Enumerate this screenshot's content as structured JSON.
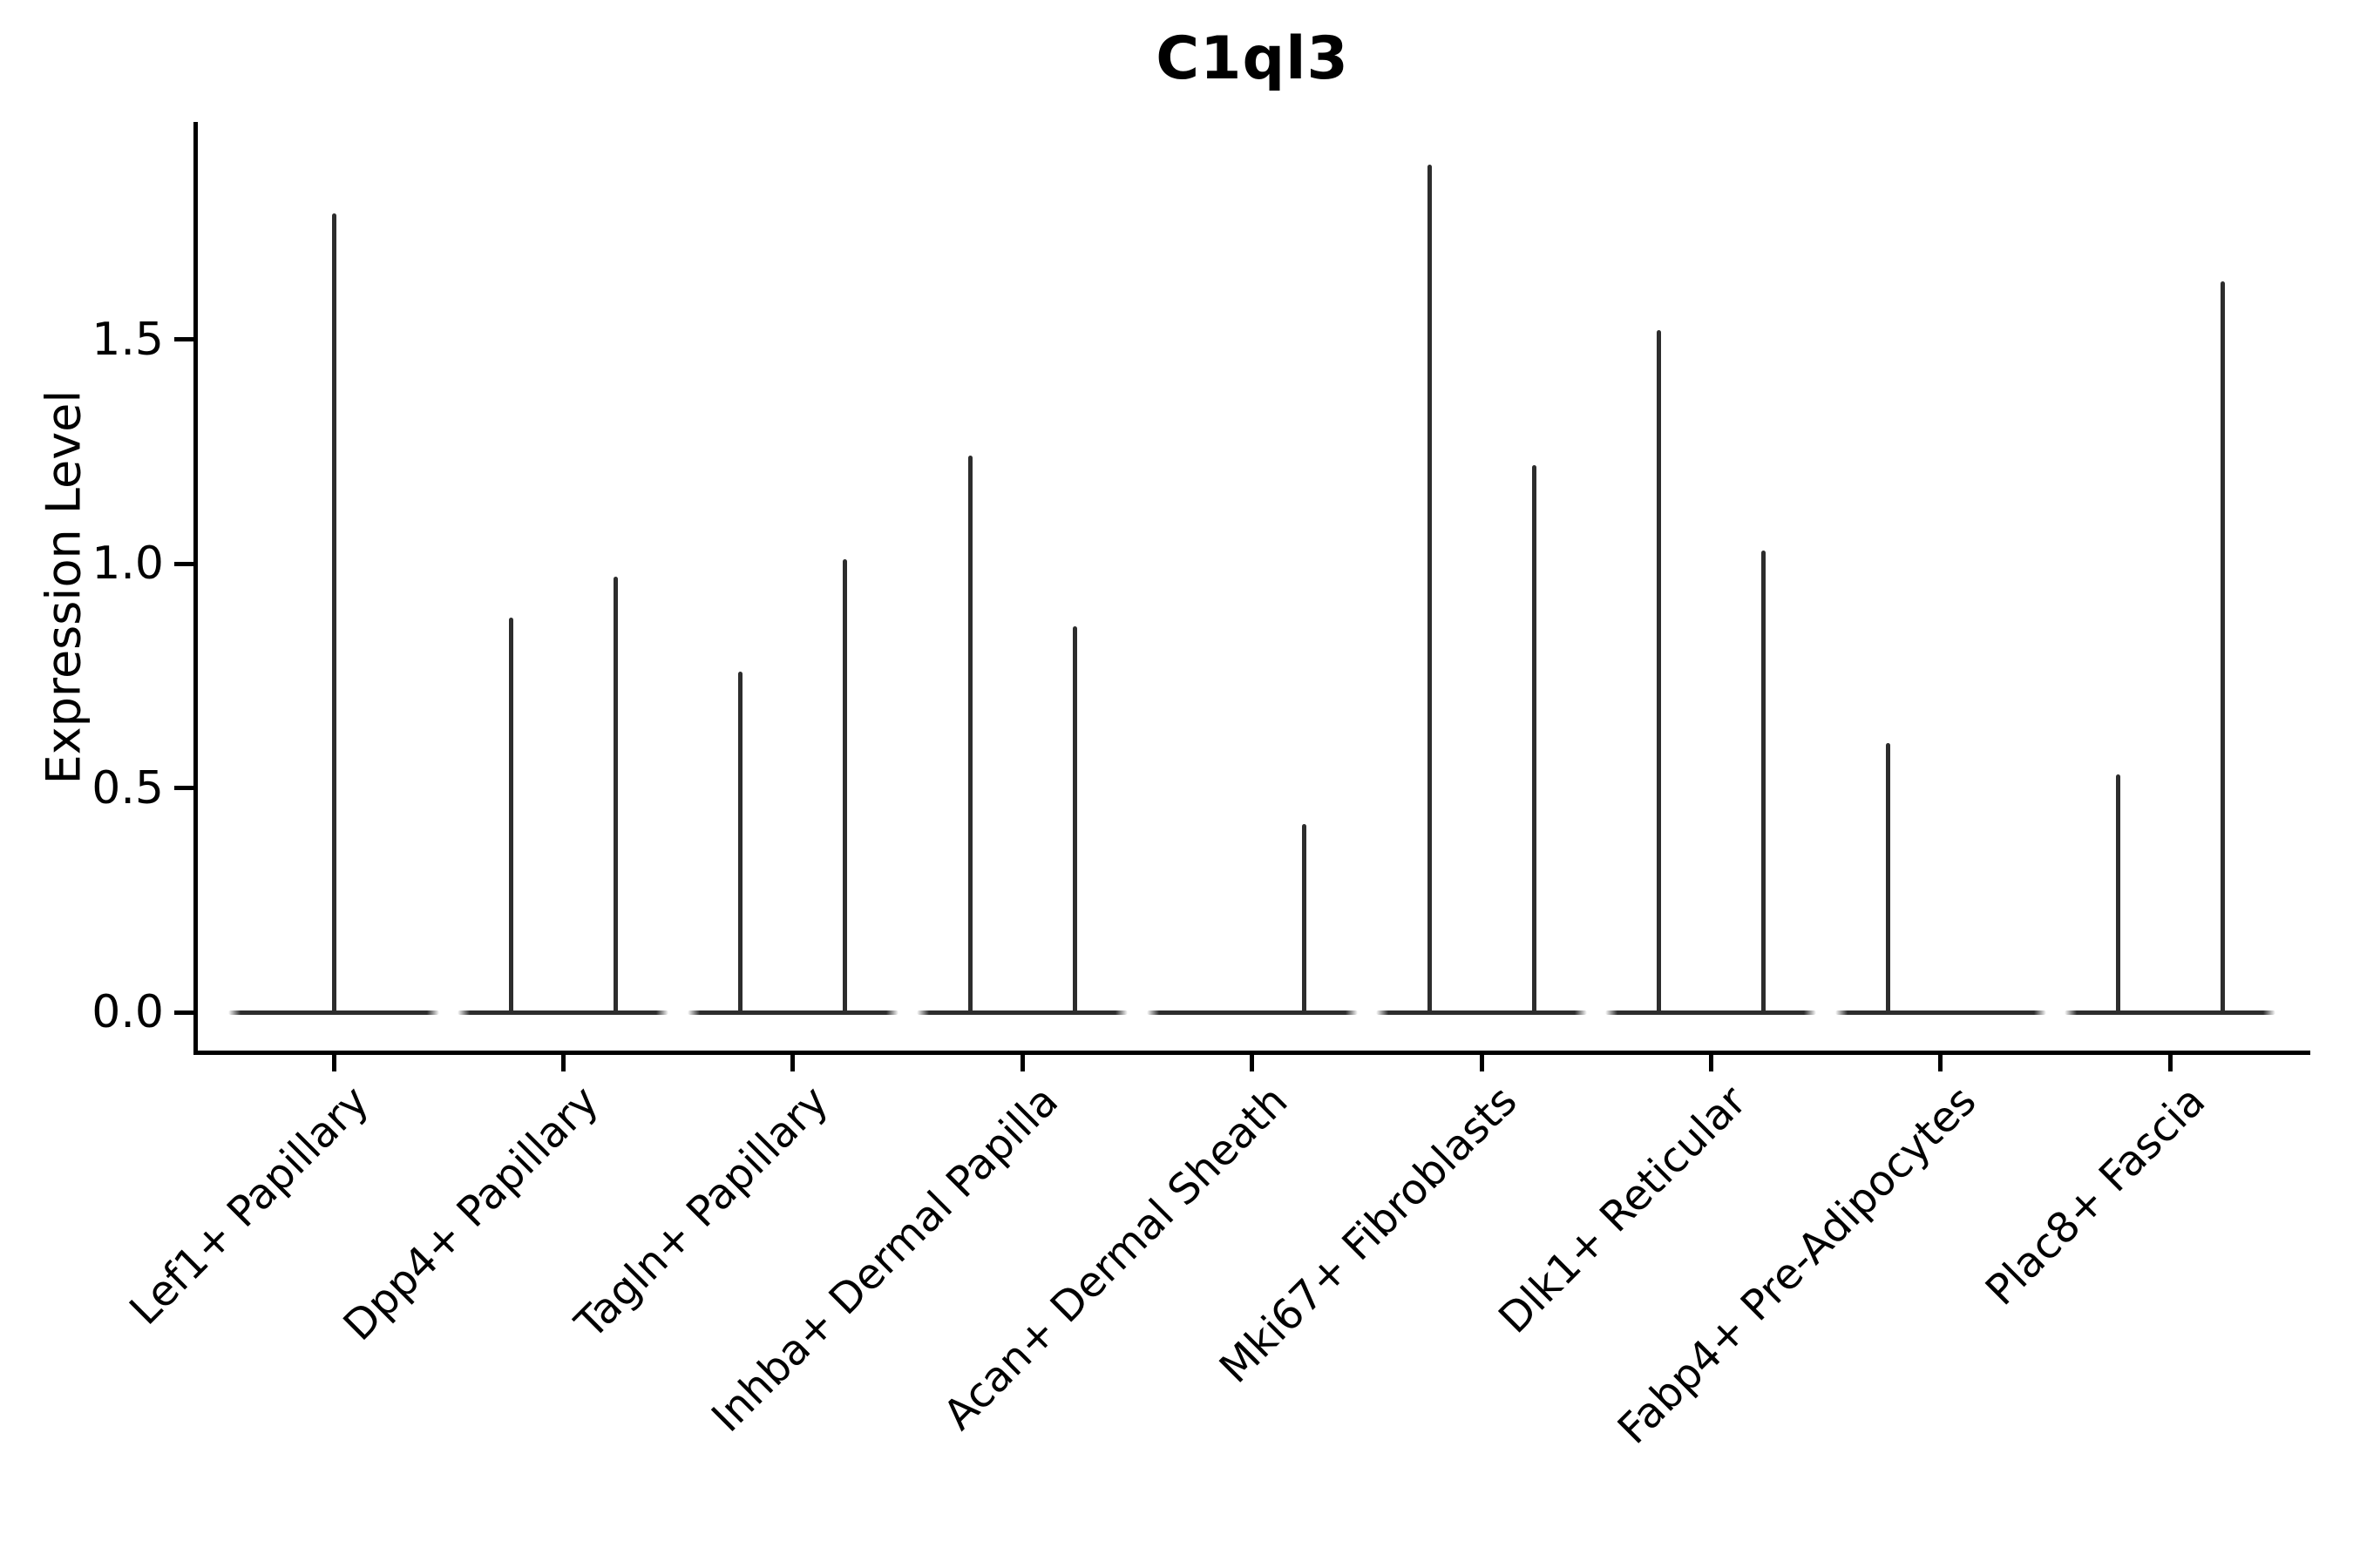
{
  "chart_data": {
    "type": "violin",
    "title": "C1ql3",
    "xlabel": "",
    "ylabel": "Expression Level",
    "yticks": [
      {
        "label": "1.5",
        "value": 1.5
      },
      {
        "label": "1.0",
        "value": 1.0
      },
      {
        "label": "0.5",
        "value": 0.5
      },
      {
        "label": "0.0",
        "value": 0.0
      }
    ],
    "ylim": [
      -0.09,
      2.0
    ],
    "grid": false,
    "legend": null,
    "x_tick_rotation": 45,
    "line_color": "#2d2d2d",
    "axis_color": "#000000",
    "background_color": "#ffffff",
    "categories": [
      "Lef1+ Papillary",
      "Dpp4+ Papillary",
      "Tagln+ Papillary",
      "Inhba+ Dermal Papilla",
      "Acan+ Dermal Sheath",
      "Mki67+ Fibroblasts",
      "Dlk1+ Reticular",
      "Fabp4+ Pre-Adipocytes",
      "Plac8+ Fascia"
    ],
    "violins": [
      {
        "category": "Lef1+ Papillary",
        "baseline_value": 0.0,
        "spikes": [
          {
            "position": "center",
            "max": 1.78
          }
        ]
      },
      {
        "category": "Dpp4+ Papillary",
        "baseline_value": 0.0,
        "spikes": [
          {
            "position": "left",
            "max": 0.88
          },
          {
            "position": "right",
            "max": 0.97
          }
        ]
      },
      {
        "category": "Tagln+ Papillary",
        "baseline_value": 0.0,
        "spikes": [
          {
            "position": "left",
            "max": 0.76
          },
          {
            "position": "right",
            "max": 1.01
          }
        ]
      },
      {
        "category": "Inhba+ Dermal Papilla",
        "baseline_value": 0.0,
        "spikes": [
          {
            "position": "left",
            "max": 1.24
          },
          {
            "position": "right",
            "max": 0.86
          }
        ]
      },
      {
        "category": "Acan+ Dermal Sheath",
        "baseline_value": 0.0,
        "spikes": [
          {
            "position": "right",
            "max": 0.42
          }
        ]
      },
      {
        "category": "Mki67+ Fibroblasts",
        "baseline_value": 0.0,
        "spikes": [
          {
            "position": "left",
            "max": 1.89
          },
          {
            "position": "right",
            "max": 1.22
          }
        ]
      },
      {
        "category": "Dlk1+ Reticular",
        "baseline_value": 0.0,
        "spikes": [
          {
            "position": "left",
            "max": 1.52
          },
          {
            "position": "right",
            "max": 1.03
          }
        ]
      },
      {
        "category": "Fabp4+ Pre-Adipocytes",
        "baseline_value": 0.0,
        "spikes": [
          {
            "position": "left",
            "max": 0.6
          }
        ]
      },
      {
        "category": "Plac8+ Fascia",
        "baseline_value": 0.0,
        "spikes": [
          {
            "position": "left",
            "max": 0.53
          },
          {
            "position": "right",
            "max": 1.63
          }
        ]
      }
    ]
  }
}
